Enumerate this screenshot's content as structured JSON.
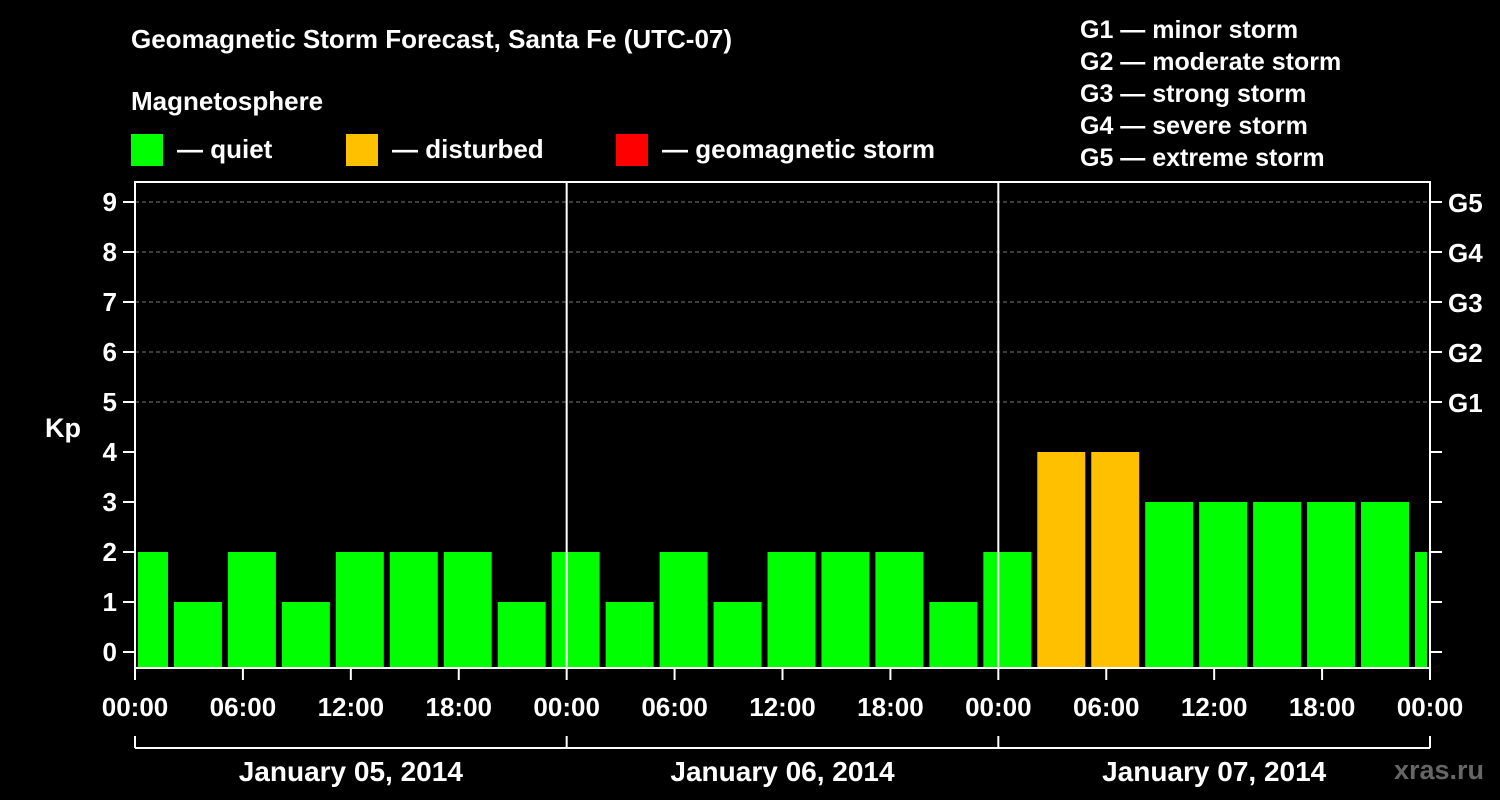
{
  "header": {
    "title": "Geomagnetic Storm Forecast, Santa Fe (UTC-07)",
    "subtitle": "Magnetosphere"
  },
  "legend": {
    "items": [
      {
        "label": "— quiet",
        "color": "#00ff00"
      },
      {
        "label": "— disturbed",
        "color": "#ffc000"
      },
      {
        "label": "— geomagnetic storm",
        "color": "#ff0000"
      }
    ]
  },
  "g_scale": [
    "G1 — minor storm",
    "G2 — moderate storm",
    "G3 — strong storm",
    "G4 — severe storm",
    "G5 — extreme storm"
  ],
  "watermark": "xras.ru",
  "chart_data": {
    "type": "bar",
    "ylabel": "Kp",
    "ylim": [
      0,
      9
    ],
    "yticks": [
      "0",
      "1",
      "2",
      "3",
      "4",
      "5",
      "6",
      "7",
      "8",
      "9"
    ],
    "right_ticks": [
      {
        "kp": 5,
        "label": "G1"
      },
      {
        "kp": 6,
        "label": "G2"
      },
      {
        "kp": 7,
        "label": "G3"
      },
      {
        "kp": 8,
        "label": "G4"
      },
      {
        "kp": 9,
        "label": "G5"
      }
    ],
    "x_tick_labels": [
      "00:00",
      "06:00",
      "12:00",
      "18:00",
      "00:00",
      "06:00",
      "12:00",
      "18:00",
      "00:00",
      "06:00",
      "12:00",
      "18:00",
      "00:00"
    ],
    "days": [
      "January 05, 2014",
      "January 06, 2014",
      "January 07, 2014"
    ],
    "grid": "dashed horizontal at 5-9",
    "bars": [
      {
        "start_h": 0,
        "end_h": 2,
        "kp": 2,
        "status": "quiet"
      },
      {
        "start_h": 2,
        "end_h": 5,
        "kp": 1,
        "status": "quiet"
      },
      {
        "start_h": 5,
        "end_h": 8,
        "kp": 2,
        "status": "quiet"
      },
      {
        "start_h": 8,
        "end_h": 11,
        "kp": 1,
        "status": "quiet"
      },
      {
        "start_h": 11,
        "end_h": 14,
        "kp": 2,
        "status": "quiet"
      },
      {
        "start_h": 14,
        "end_h": 17,
        "kp": 2,
        "status": "quiet"
      },
      {
        "start_h": 17,
        "end_h": 20,
        "kp": 2,
        "status": "quiet"
      },
      {
        "start_h": 20,
        "end_h": 23,
        "kp": 1,
        "status": "quiet"
      },
      {
        "start_h": 23,
        "end_h": 26,
        "kp": 2,
        "status": "quiet"
      },
      {
        "start_h": 26,
        "end_h": 29,
        "kp": 1,
        "status": "quiet"
      },
      {
        "start_h": 29,
        "end_h": 32,
        "kp": 2,
        "status": "quiet"
      },
      {
        "start_h": 32,
        "end_h": 35,
        "kp": 1,
        "status": "quiet"
      },
      {
        "start_h": 35,
        "end_h": 38,
        "kp": 2,
        "status": "quiet"
      },
      {
        "start_h": 38,
        "end_h": 41,
        "kp": 2,
        "status": "quiet"
      },
      {
        "start_h": 41,
        "end_h": 44,
        "kp": 2,
        "status": "quiet"
      },
      {
        "start_h": 44,
        "end_h": 47,
        "kp": 1,
        "status": "quiet"
      },
      {
        "start_h": 47,
        "end_h": 50,
        "kp": 2,
        "status": "quiet"
      },
      {
        "start_h": 50,
        "end_h": 53,
        "kp": 4,
        "status": "disturbed"
      },
      {
        "start_h": 53,
        "end_h": 56,
        "kp": 4,
        "status": "disturbed"
      },
      {
        "start_h": 56,
        "end_h": 59,
        "kp": 3,
        "status": "quiet"
      },
      {
        "start_h": 59,
        "end_h": 62,
        "kp": 3,
        "status": "quiet"
      },
      {
        "start_h": 62,
        "end_h": 65,
        "kp": 3,
        "status": "quiet"
      },
      {
        "start_h": 65,
        "end_h": 68,
        "kp": 3,
        "status": "quiet"
      },
      {
        "start_h": 68,
        "end_h": 71,
        "kp": 3,
        "status": "quiet"
      },
      {
        "start_h": 71,
        "end_h": 72,
        "kp": 2,
        "status": "quiet"
      }
    ]
  }
}
